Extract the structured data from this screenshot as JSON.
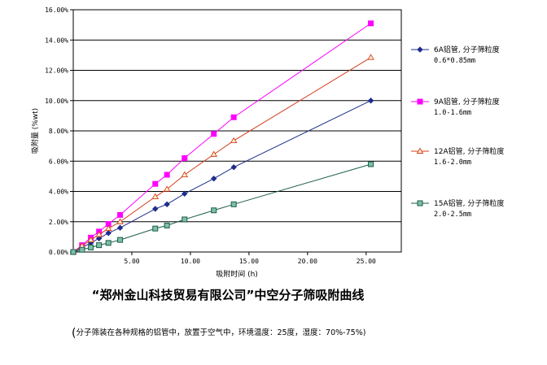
{
  "chart_data": {
    "type": "line",
    "title": "“郑州金山科技贸易有限公司”中空分子筛吸附曲线",
    "subtitle": "分子筛装在各种规格的铝管中，放置于空气中，环境温度：25度，湿度：70%-75%)",
    "subtitle_open": "(",
    "xlabel": "吸附时间 (h)",
    "ylabel": "吸附量 (%wt)",
    "xlim": [
      0,
      28
    ],
    "ylim": [
      0,
      16
    ],
    "x_ticks": [
      "5.00",
      "10.00",
      "15.00",
      "20.00",
      "25.00"
    ],
    "x_tick_values": [
      5,
      10,
      15,
      20,
      25
    ],
    "y_ticks": [
      "0.00%",
      "2.00%",
      "4.00%",
      "6.00%",
      "8.00%",
      "10.00%",
      "12.00%",
      "14.00%",
      "16.00%"
    ],
    "y_tick_values": [
      0,
      2,
      4,
      6,
      8,
      10,
      12,
      14,
      16
    ],
    "grid": "horizontal",
    "legend_position": "right",
    "series": [
      {
        "name": "6A铝管, 分子筛粒度",
        "detail": "0.6*0.85mm",
        "color": "#1f2d8c",
        "marker": "diamond",
        "points": [
          [
            0,
            0
          ],
          [
            0.75,
            0.3
          ],
          [
            1.5,
            0.6
          ],
          [
            2.2,
            0.9
          ],
          [
            3.0,
            1.25
          ],
          [
            4.0,
            1.6
          ],
          [
            7.0,
            2.85
          ],
          [
            8.0,
            3.15
          ],
          [
            9.5,
            3.85
          ],
          [
            12.0,
            4.85
          ],
          [
            13.7,
            5.6
          ],
          [
            25.4,
            10.0
          ]
        ]
      },
      {
        "name": "9A铝管, 分子筛粒度",
        "detail": "1.0-1.6mm",
        "color": "#ff00ff",
        "marker": "square",
        "points": [
          [
            0,
            0
          ],
          [
            0.75,
            0.45
          ],
          [
            1.5,
            0.95
          ],
          [
            2.2,
            1.35
          ],
          [
            3.0,
            1.85
          ],
          [
            4.0,
            2.45
          ],
          [
            7.0,
            4.5
          ],
          [
            8.0,
            5.1
          ],
          [
            9.5,
            6.2
          ],
          [
            12.0,
            7.8
          ],
          [
            13.7,
            8.9
          ],
          [
            25.4,
            15.1
          ]
        ]
      },
      {
        "name": "12A铝管, 分子筛粒度",
        "detail": "1.6-2.0mm",
        "color": "#d43c1e",
        "marker": "triangle",
        "points": [
          [
            0,
            0
          ],
          [
            0.75,
            0.4
          ],
          [
            1.5,
            0.8
          ],
          [
            2.2,
            1.15
          ],
          [
            3.0,
            1.55
          ],
          [
            4.0,
            2.0
          ],
          [
            7.0,
            3.65
          ],
          [
            8.0,
            4.15
          ],
          [
            9.5,
            5.1
          ],
          [
            12.0,
            6.45
          ],
          [
            13.7,
            7.35
          ],
          [
            25.4,
            12.85
          ]
        ]
      },
      {
        "name": "15A铝管, 分子筛粒度",
        "detail": "2.0-2.5mm",
        "color": "#1a5c4a",
        "marker": "square-open",
        "points": [
          [
            0,
            0
          ],
          [
            0.75,
            0.15
          ],
          [
            1.5,
            0.3
          ],
          [
            2.2,
            0.45
          ],
          [
            3.0,
            0.6
          ],
          [
            4.0,
            0.8
          ],
          [
            7.0,
            1.55
          ],
          [
            8.0,
            1.75
          ],
          [
            9.5,
            2.15
          ],
          [
            12.0,
            2.75
          ],
          [
            13.7,
            3.15
          ],
          [
            25.4,
            5.8
          ]
        ]
      }
    ]
  }
}
